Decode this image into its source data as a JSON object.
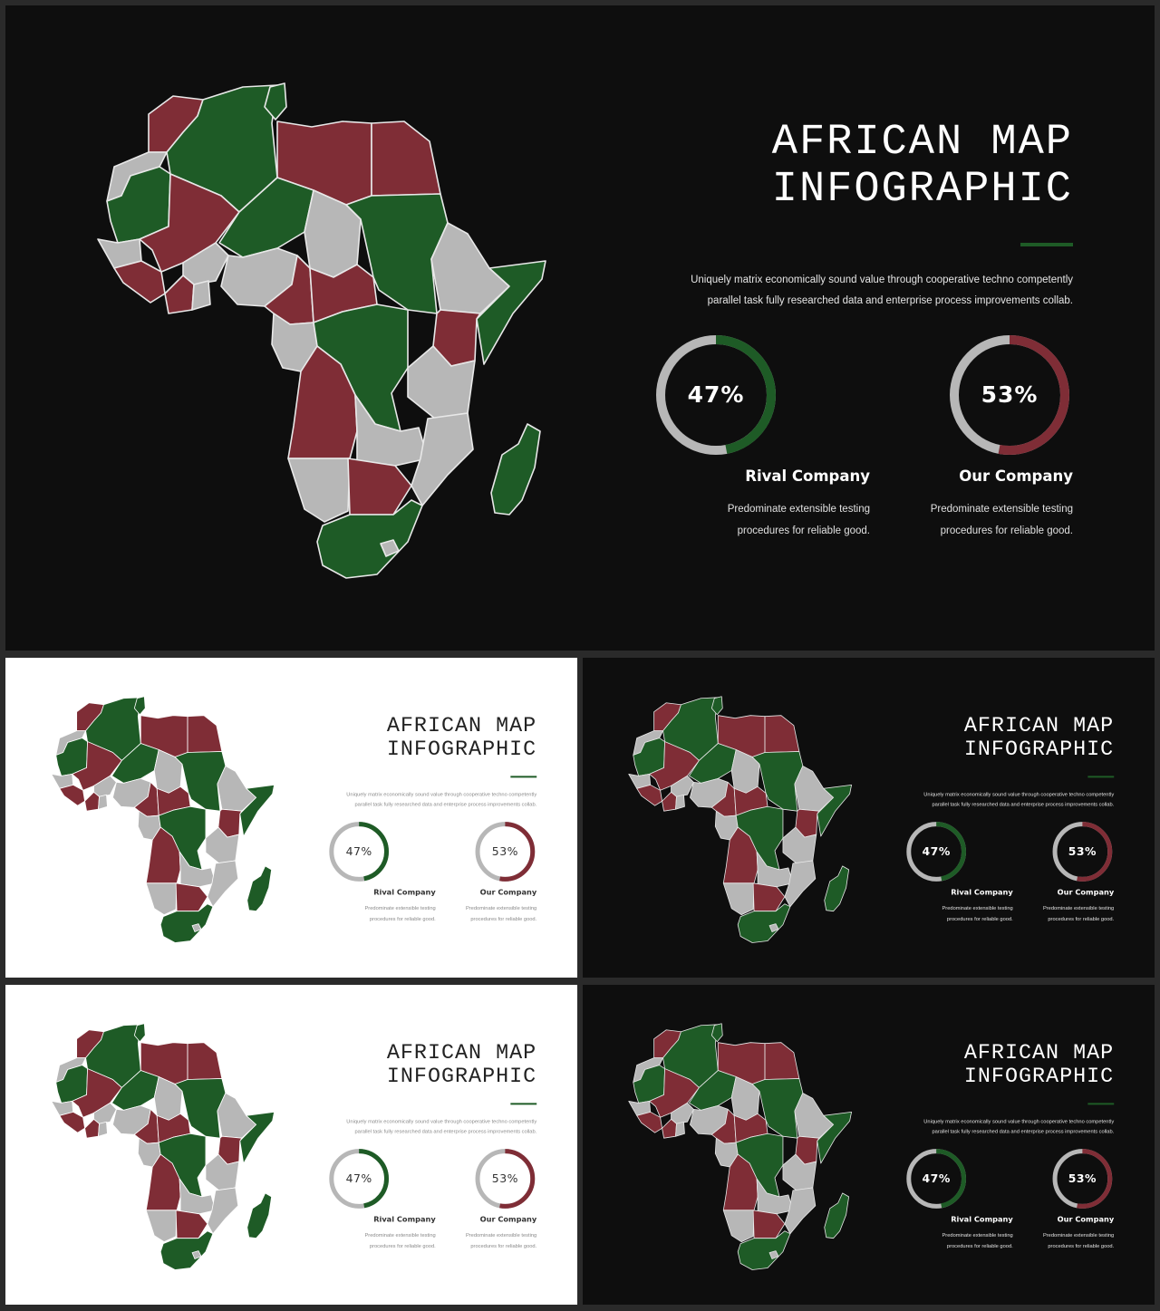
{
  "colors": {
    "green": "#1e5b26",
    "red": "#7f2d36",
    "gray": "#b7b7b7",
    "dark_bg": "#0e0e0e",
    "light_bg": "#ffffff"
  },
  "slide": {
    "title_line1": "AFRICAN MAP",
    "title_line2": "INFOGRAPHIC",
    "description_line1": "Uniquely matrix economically sound value through cooperative techno  competently",
    "description_line2": "parallel task fully researched data and enterprise process improvements collab.",
    "stats": [
      {
        "value": 0.47,
        "label": "47%",
        "color": "#1e5b26",
        "company": "Rival Company",
        "desc_line1": "Predominate extensible testing",
        "desc_line2": "procedures for reliable good."
      },
      {
        "value": 0.53,
        "label": "53%",
        "color": "#7f2d36",
        "company": "Our Company",
        "desc_line1": "Predominate extensible testing",
        "desc_line2": "procedures for reliable good."
      }
    ]
  },
  "slides": [
    {
      "theme": "dark"
    },
    {
      "theme": "light"
    },
    {
      "theme": "dark"
    },
    {
      "theme": "light"
    },
    {
      "theme": "dark"
    }
  ]
}
